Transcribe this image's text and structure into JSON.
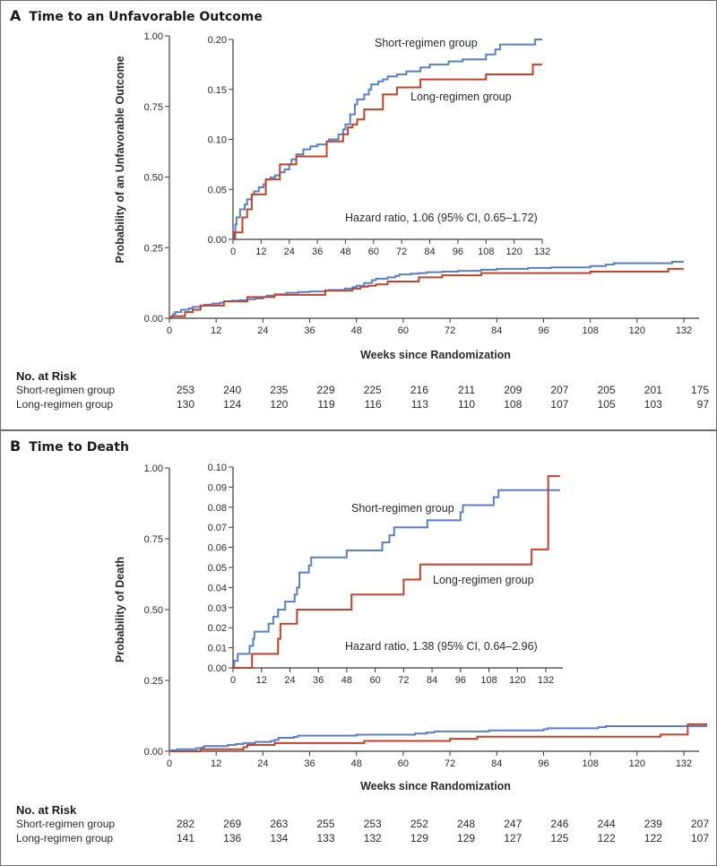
{
  "chart_data": [
    {
      "type": "line",
      "panel_letter": "A",
      "title": "Time to an Unfavorable Outcome",
      "xlabel": "Weeks since Randomization",
      "ylabel": "Probability of an Unfavorable Outcome",
      "xlim": [
        0,
        132
      ],
      "ylim": [
        0,
        1.0
      ],
      "xticks": [
        "0",
        "12",
        "24",
        "36",
        "48",
        "60",
        "72",
        "84",
        "96",
        "108",
        "120",
        "132"
      ],
      "yticks": [
        "0.00",
        "0.25",
        "0.50",
        "0.75",
        "1.00"
      ],
      "series": [
        {
          "name": "Short-regimen group",
          "color": "#5b7fc7",
          "steps": [
            [
              0,
              0.0
            ],
            [
              1,
              0.015
            ],
            [
              1.5,
              0.022
            ],
            [
              3,
              0.03
            ],
            [
              5,
              0.035
            ],
            [
              6,
              0.04
            ],
            [
              8,
              0.045
            ],
            [
              9,
              0.048
            ],
            [
              11,
              0.052
            ],
            [
              13,
              0.055
            ],
            [
              14,
              0.06
            ],
            [
              16,
              0.062
            ],
            [
              18,
              0.064
            ],
            [
              20,
              0.067
            ],
            [
              22,
              0.07
            ],
            [
              24,
              0.075
            ],
            [
              25,
              0.08
            ],
            [
              27,
              0.085
            ],
            [
              30,
              0.09
            ],
            [
              33,
              0.093
            ],
            [
              36,
              0.095
            ],
            [
              40,
              0.098
            ],
            [
              41,
              0.1
            ],
            [
              45,
              0.105
            ],
            [
              47,
              0.11
            ],
            [
              48,
              0.115
            ],
            [
              50,
              0.125
            ],
            [
              52,
              0.135
            ],
            [
              53,
              0.14
            ],
            [
              56,
              0.145
            ],
            [
              58,
              0.15
            ],
            [
              59,
              0.155
            ],
            [
              62,
              0.158
            ],
            [
              64,
              0.16
            ],
            [
              66,
              0.163
            ],
            [
              70,
              0.165
            ],
            [
              74,
              0.168
            ],
            [
              80,
              0.172
            ],
            [
              84,
              0.175
            ],
            [
              92,
              0.178
            ],
            [
              98,
              0.18
            ],
            [
              108,
              0.185
            ],
            [
              112,
              0.19
            ],
            [
              114,
              0.195
            ],
            [
              129,
              0.2
            ],
            [
              133,
              0.2
            ]
          ]
        },
        {
          "name": "Long-regimen group",
          "color": "#c0432e",
          "steps": [
            [
              0,
              0.0
            ],
            [
              0.5,
              0.007
            ],
            [
              4,
              0.022
            ],
            [
              6,
              0.03
            ],
            [
              8,
              0.045
            ],
            [
              14,
              0.06
            ],
            [
              18,
              0.06
            ],
            [
              20,
              0.075
            ],
            [
              27,
              0.083
            ],
            [
              40,
              0.098
            ],
            [
              47,
              0.105
            ],
            [
              49,
              0.112
            ],
            [
              51,
              0.115
            ],
            [
              53,
              0.12
            ],
            [
              56,
              0.13
            ],
            [
              64,
              0.145
            ],
            [
              70,
              0.152
            ],
            [
              80,
              0.16
            ],
            [
              108,
              0.165
            ],
            [
              128,
              0.175
            ],
            [
              133,
              0.175
            ]
          ]
        }
      ],
      "inset": {
        "xlim": [
          0,
          132
        ],
        "ylim": [
          0,
          0.2
        ],
        "xticks": [
          "0",
          "12",
          "24",
          "36",
          "48",
          "60",
          "72",
          "84",
          "96",
          "108",
          "120",
          "132"
        ],
        "yticks": [
          "0.00",
          "0.05",
          "0.10",
          "0.15",
          "0.20"
        ],
        "annotation": "Hazard ratio, 1.06 (95% CI, 0.65–1.72)",
        "series_labels": [
          "Short-regimen group",
          "Long-regimen group"
        ]
      },
      "risk_table": {
        "header": "No. at Risk",
        "rows": [
          {
            "label": "Short-regimen group",
            "values": [
              "253",
              "240",
              "235",
              "229",
              "225",
              "216",
              "211",
              "209",
              "207",
              "205",
              "201",
              "175"
            ]
          },
          {
            "label": "Long-regimen group",
            "values": [
              "130",
              "124",
              "120",
              "119",
              "116",
              "113",
              "110",
              "108",
              "107",
              "105",
              "103",
              "97"
            ]
          }
        ]
      }
    },
    {
      "type": "line",
      "panel_letter": "B",
      "title": "Time to Death",
      "xlabel": "Weeks since Randomization",
      "ylabel": "Probability of Death",
      "xlim": [
        0,
        138
      ],
      "ylim": [
        0,
        1.0
      ],
      "xticks": [
        "0",
        "12",
        "24",
        "36",
        "48",
        "60",
        "72",
        "84",
        "96",
        "108",
        "120",
        "132"
      ],
      "yticks": [
        "0.00",
        "0.25",
        "0.50",
        "0.75",
        "1.00"
      ],
      "series": [
        {
          "name": "Short-regimen group",
          "color": "#5b7fc7",
          "steps": [
            [
              0,
              0.0
            ],
            [
              0.5,
              0.0035
            ],
            [
              2,
              0.007
            ],
            [
              7,
              0.011
            ],
            [
              8.5,
              0.0145
            ],
            [
              9,
              0.018
            ],
            [
              15,
              0.022
            ],
            [
              17,
              0.0255
            ],
            [
              19,
              0.029
            ],
            [
              22,
              0.033
            ],
            [
              26,
              0.0365
            ],
            [
              27,
              0.04
            ],
            [
              28,
              0.0475
            ],
            [
              32,
              0.051
            ],
            [
              33,
              0.055
            ],
            [
              48,
              0.0585
            ],
            [
              63,
              0.0625
            ],
            [
              66,
              0.066
            ],
            [
              68,
              0.07
            ],
            [
              82,
              0.0735
            ],
            [
              96,
              0.0775
            ],
            [
              97,
              0.081
            ],
            [
              110,
              0.085
            ],
            [
              112,
              0.0885
            ],
            [
              138,
              0.0885
            ]
          ]
        },
        {
          "name": "Long-regimen group",
          "color": "#c0432e",
          "steps": [
            [
              0,
              0.0
            ],
            [
              8,
              0.007
            ],
            [
              19,
              0.0145
            ],
            [
              20,
              0.022
            ],
            [
              27,
              0.029
            ],
            [
              50,
              0.0365
            ],
            [
              72,
              0.044
            ],
            [
              79,
              0.0515
            ],
            [
              126,
              0.059
            ],
            [
              133,
              0.0955
            ],
            [
              138,
              0.0955
            ]
          ]
        }
      ],
      "inset": {
        "xlim": [
          0,
          138
        ],
        "ylim": [
          0,
          0.1
        ],
        "xticks": [
          "0",
          "12",
          "24",
          "36",
          "48",
          "60",
          "72",
          "84",
          "96",
          "108",
          "120",
          "132"
        ],
        "yticks": [
          "0.00",
          "0.01",
          "0.02",
          "0.03",
          "0.04",
          "0.05",
          "0.06",
          "0.07",
          "0.08",
          "0.09",
          "0.10"
        ],
        "annotation": "Hazard ratio, 1.38 (95% CI, 0.64–2.96)",
        "series_labels": [
          "Short-regimen group",
          "Long-regimen group"
        ]
      },
      "risk_table": {
        "header": "No. at Risk",
        "rows": [
          {
            "label": "Short-regimen group",
            "values": [
              "282",
              "269",
              "263",
              "255",
              "253",
              "252",
              "248",
              "247",
              "246",
              "244",
              "239",
              "207"
            ]
          },
          {
            "label": "Long-regimen group",
            "values": [
              "141",
              "136",
              "134",
              "133",
              "132",
              "129",
              "129",
              "127",
              "125",
              "122",
              "122",
              "107"
            ]
          }
        ]
      }
    }
  ]
}
